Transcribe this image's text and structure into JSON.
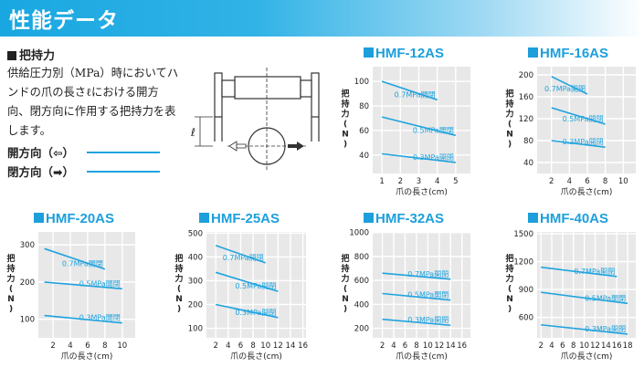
{
  "header": {
    "title": "性能データ"
  },
  "section": {
    "title": "把持力",
    "description": "供給圧力別（MPa）時においてハンドの爪の長さℓにおける開方向、閉方向に作用する把持力を表します。",
    "legend_open": "開方向（⇦）",
    "legend_close": "閉方向（➡）",
    "line_color": "#1fa3df"
  },
  "diagram": {
    "length_label": "ℓ"
  },
  "chart_data": [
    {
      "type": "line",
      "title": "HMF-12AS",
      "xlabel": "爪の長さ(cm)",
      "ylabel": "把持力(N)",
      "xticks": [
        1,
        2,
        3,
        4,
        5
      ],
      "yticks": [
        40,
        60,
        80,
        100
      ],
      "xlim": [
        0.5,
        5.8
      ],
      "ylim": [
        25,
        112
      ],
      "series": [
        {
          "name": "0.7MPa開閉",
          "x": [
            1,
            4
          ],
          "y": [
            100,
            85
          ]
        },
        {
          "name": "0.5MPa開閉",
          "x": [
            1,
            5
          ],
          "y": [
            71,
            56
          ]
        },
        {
          "name": "0.3MPa開閉",
          "x": [
            1,
            5
          ],
          "y": [
            41,
            34
          ]
        }
      ]
    },
    {
      "type": "line",
      "title": "HMF-16AS",
      "xlabel": "爪の長さ(cm)",
      "ylabel": "把持力(N)",
      "xticks": [
        2,
        4,
        6,
        8,
        10
      ],
      "yticks": [
        40,
        80,
        120,
        160,
        200
      ],
      "xlim": [
        0.4,
        11.4
      ],
      "ylim": [
        20,
        215
      ],
      "series": [
        {
          "name": "0.7MPa開閉",
          "x": [
            2,
            6
          ],
          "y": [
            197,
            165
          ]
        },
        {
          "name": "0.5MPa開閉",
          "x": [
            2,
            8
          ],
          "y": [
            140,
            110
          ]
        },
        {
          "name": "0.3MPa開閉",
          "x": [
            2,
            8
          ],
          "y": [
            80,
            68
          ]
        }
      ]
    },
    {
      "type": "line",
      "title": "HMF-20AS",
      "xlabel": "爪の長さ(cm)",
      "ylabel": "把持力(N)",
      "xticks": [
        2,
        4,
        6,
        8,
        10
      ],
      "yticks": [
        100,
        200,
        300
      ],
      "xlim": [
        0.3,
        11.5
      ],
      "ylim": [
        50,
        335
      ],
      "series": [
        {
          "name": "0.7MPa開閉",
          "x": [
            1,
            8
          ],
          "y": [
            290,
            235
          ]
        },
        {
          "name": "0.5MPa開閉",
          "x": [
            1,
            10
          ],
          "y": [
            200,
            182
          ]
        },
        {
          "name": "0.3MPa開閉",
          "x": [
            1,
            10
          ],
          "y": [
            110,
            90
          ]
        }
      ]
    },
    {
      "type": "line",
      "title": "HMF-25AS",
      "xlabel": "爪の長さ(cm)",
      "ylabel": "把持力(N)",
      "xticks": [
        2,
        4,
        6,
        8,
        10,
        12,
        14,
        16
      ],
      "yticks": [
        100,
        200,
        300,
        400,
        500
      ],
      "xlim": [
        0.5,
        16.5
      ],
      "ylim": [
        60,
        505
      ],
      "series": [
        {
          "name": "0.7MPa開閉",
          "x": [
            2,
            10
          ],
          "y": [
            448,
            375
          ]
        },
        {
          "name": "0.5MPa開閉",
          "x": [
            2,
            12
          ],
          "y": [
            335,
            255
          ]
        },
        {
          "name": "0.3MPa開閉",
          "x": [
            2,
            12
          ],
          "y": [
            200,
            145
          ]
        }
      ]
    },
    {
      "type": "line",
      "title": "HMF-32AS",
      "xlabel": "爪の長さ(cm)",
      "ylabel": "把持力(N)",
      "xticks": [
        2,
        4,
        6,
        8,
        10,
        12,
        14,
        16
      ],
      "yticks": [
        200,
        400,
        600,
        800,
        1000
      ],
      "xlim": [
        0.3,
        17.5
      ],
      "ylim": [
        120,
        1005
      ],
      "series": [
        {
          "name": "0.7MPa開閉",
          "x": [
            2,
            14
          ],
          "y": [
            660,
            610
          ]
        },
        {
          "name": "0.5MPa開閉",
          "x": [
            2,
            14
          ],
          "y": [
            490,
            435
          ]
        },
        {
          "name": "0.3MPa開閉",
          "x": [
            2,
            14
          ],
          "y": [
            275,
            225
          ]
        }
      ]
    },
    {
      "type": "line",
      "title": "HMF-40AS",
      "xlabel": "爪の長さ(cm)",
      "ylabel": "把持力(N)",
      "xticks": [
        2,
        4,
        6,
        8,
        10,
        12,
        14,
        16,
        18
      ],
      "yticks": [
        600,
        900,
        1200,
        1500
      ],
      "xlim": [
        1.3,
        19.5
      ],
      "ylim": [
        380,
        1520
      ],
      "series": [
        {
          "name": "0.7MPa開閉",
          "x": [
            2,
            16
          ],
          "y": [
            1140,
            1040
          ]
        },
        {
          "name": "0.5MPa開閉",
          "x": [
            2,
            18
          ],
          "y": [
            870,
            750
          ]
        },
        {
          "name": "0.3MPa開閉",
          "x": [
            2,
            18
          ],
          "y": [
            520,
            420
          ]
        }
      ]
    }
  ]
}
